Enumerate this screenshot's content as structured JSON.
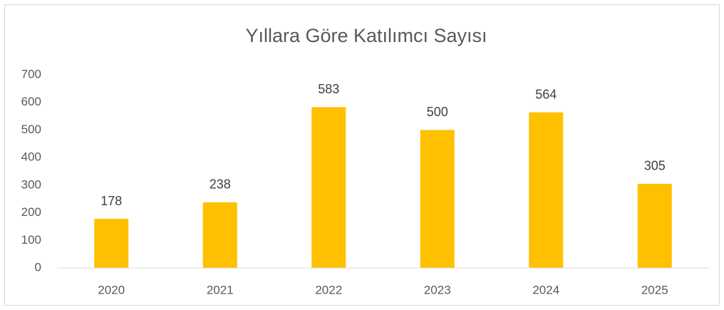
{
  "chart_data": {
    "type": "bar",
    "title": "Yıllara Göre Katılımcı Sayısı",
    "categories": [
      "2020",
      "2021",
      "2022",
      "2023",
      "2024",
      "2025"
    ],
    "values": [
      178,
      238,
      583,
      500,
      564,
      305
    ],
    "color": "#FFC000",
    "ylim": [
      0,
      700
    ],
    "yticks": [
      0,
      100,
      200,
      300,
      400,
      500,
      600,
      700
    ],
    "grid": false
  }
}
